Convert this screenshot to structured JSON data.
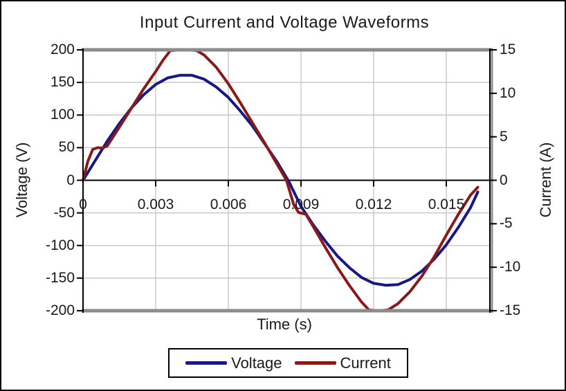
{
  "chart": {
    "title": "Input Current and Voltage Waveforms",
    "x_axis": {
      "title": "Time (s)",
      "tick_labels": [
        "0",
        "0.003",
        "0.006",
        "0.009",
        "0.012",
        "0.015"
      ],
      "tick_values": [
        0,
        0.003,
        0.006,
        0.009,
        0.012,
        0.015
      ]
    },
    "y_left": {
      "title": "Voltage (V)",
      "tick_labels": [
        "200",
        "150",
        "100",
        "50",
        "0",
        "-50",
        "-100",
        "-150",
        "-200"
      ],
      "tick_values": [
        200,
        150,
        100,
        50,
        0,
        -50,
        -100,
        -150,
        -200
      ]
    },
    "y_right": {
      "title": "Current (A)",
      "tick_labels": [
        "15",
        "10",
        "5",
        "0",
        "-5",
        "-10",
        "-15"
      ],
      "tick_values": [
        15,
        10,
        5,
        0,
        -5,
        -10,
        -15
      ]
    },
    "legend": [
      {
        "label": "Voltage",
        "color": "#181884"
      },
      {
        "label": "Current",
        "color": "#8a1a1a"
      }
    ],
    "colors": {
      "gridline": "#c8c8c8",
      "plot_border_gray": "#8c8c8c",
      "axis_black": "#000000"
    }
  },
  "chart_data": {
    "type": "line",
    "title": "Input Current and Voltage Waveforms",
    "xlabel": "Time (s)",
    "ylabel_left": "Voltage (V)",
    "ylabel_right": "Current (A)",
    "x_range": [
      0,
      0.0168
    ],
    "voltage_ylim": [
      -200,
      200
    ],
    "current_ylim": [
      -15,
      15
    ],
    "grid": true,
    "legend_position": "bottom",
    "series": [
      {
        "name": "Voltage",
        "axis": "left",
        "color": "#181884",
        "x": [
          0,
          0.0005,
          0.001,
          0.0015,
          0.002,
          0.0025,
          0.003,
          0.0035,
          0.004,
          0.0045,
          0.005,
          0.0055,
          0.006,
          0.0065,
          0.007,
          0.0075,
          0.008,
          0.0085,
          0.009,
          0.0095,
          0.01,
          0.0105,
          0.011,
          0.0115,
          0.012,
          0.0125,
          0.013,
          0.0135,
          0.014,
          0.0145,
          0.015,
          0.0155,
          0.016,
          0.0163
        ],
        "y": [
          0,
          30,
          60,
          87,
          111,
          131,
          147,
          157,
          161,
          161,
          155,
          143,
          127,
          106,
          83,
          56,
          29,
          -2,
          -40,
          -68,
          -93,
          -116,
          -134,
          -149,
          -158,
          -161,
          -160,
          -152,
          -139,
          -121,
          -99,
          -72,
          -42,
          -18
        ]
      },
      {
        "name": "Current",
        "axis": "right",
        "color": "#8a1a1a",
        "x": [
          0,
          0.0002,
          0.0004,
          0.0006,
          0.0008,
          0.001,
          0.0015,
          0.002,
          0.0025,
          0.003,
          0.0033,
          0.0036,
          0.004,
          0.0044,
          0.0047,
          0.005,
          0.0055,
          0.006,
          0.0065,
          0.007,
          0.0075,
          0.008,
          0.0084,
          0.0087,
          0.0089,
          0.0092,
          0.0095,
          0.01,
          0.0105,
          0.011,
          0.0115,
          0.0118,
          0.0122,
          0.0126,
          0.013,
          0.0135,
          0.014,
          0.0145,
          0.015,
          0.0155,
          0.016,
          0.0163
        ],
        "y": [
          0,
          2.2,
          3.55,
          3.75,
          3.7,
          3.95,
          6.1,
          8.3,
          10.5,
          12.5,
          13.8,
          14.9,
          15,
          15,
          14.9,
          14.4,
          13,
          11.1,
          8.9,
          6.6,
          4.3,
          1.9,
          0,
          -2.8,
          -3.7,
          -3.9,
          -5.3,
          -7.7,
          -10,
          -12.1,
          -14,
          -14.9,
          -15,
          -14.9,
          -14.2,
          -12.8,
          -11,
          -8.8,
          -6.3,
          -3.9,
          -1.7,
          -0.8
        ]
      }
    ]
  }
}
